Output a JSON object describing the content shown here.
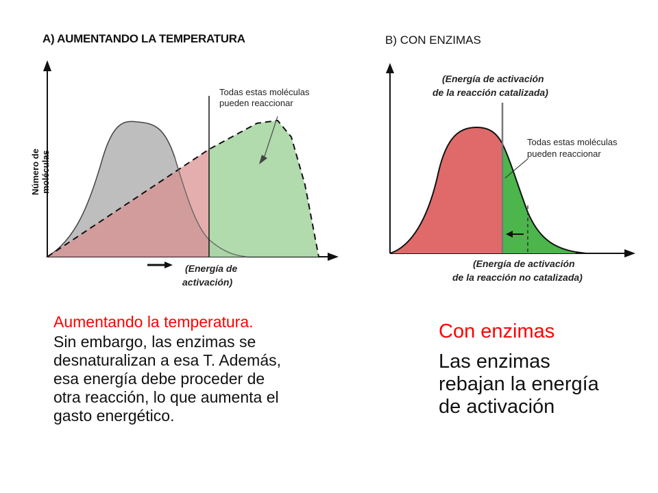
{
  "panel_a": {
    "title": "A) AUMENTANDO LA TEMPERATURA",
    "ylabel": "Número de moléculas",
    "annotation": "Todas estas moléculas pueden reaccionar",
    "xlabel_line1": "(Energía de",
    "xlabel_line2": "activación)"
  },
  "panel_b": {
    "title": "B) CON ENZIMAS",
    "top_label_line1": "(Energía de activación",
    "top_label_line2": "de la reacción catalizada)",
    "annotation_line1": "Todas estas moléculas",
    "annotation_line2": "pueden reaccionar",
    "bottom_label_line1": "(Energía de activación",
    "bottom_label_line2": "de la reacción no catalizada)"
  },
  "text_left": {
    "heading": "Aumentando la temperatura.",
    "lines": [
      "Sin embargo, las enzimas se",
      "desnaturalizan a esa T. Además,",
      "esa energía debe proceder de",
      "otra reacción, lo que aumenta el",
      "gasto energético."
    ]
  },
  "text_right": {
    "heading": "Con enzimas",
    "lines": [
      "Las enzimas",
      "rebajan la energía",
      "de activación"
    ]
  },
  "colors": {
    "red_area": "#e06a6a",
    "pink_area": "#d9a0a0",
    "green_area": "#a9d6a4",
    "green_dark": "#4cb54c",
    "grey_area": "#b3b3b3",
    "heading_red": "#ff0000"
  }
}
